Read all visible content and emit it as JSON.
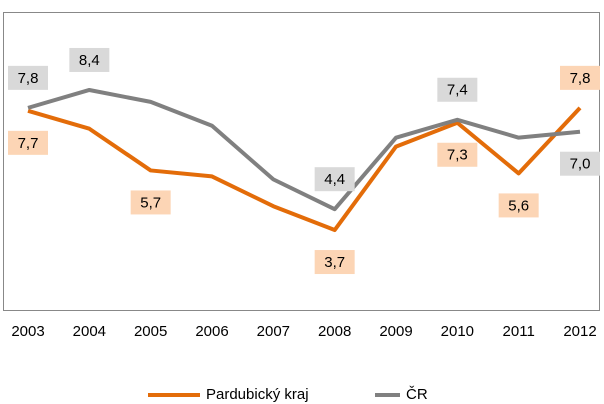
{
  "chart_data": {
    "type": "line",
    "categories": [
      "2003",
      "2004",
      "2005",
      "2006",
      "2007",
      "2008",
      "2009",
      "2010",
      "2011",
      "2012"
    ],
    "series": [
      {
        "name": "Pardubický kraj",
        "color": "#e36c09",
        "label_color": "#fcd5b5",
        "values": [
          7.7,
          7.1,
          5.7,
          5.5,
          4.5,
          3.7,
          6.5,
          7.3,
          5.6,
          7.8
        ],
        "value_labels": [
          "7,7",
          null,
          "5,7",
          null,
          null,
          "3,7",
          null,
          "7,3",
          "5,6",
          "7,8"
        ]
      },
      {
        "name": "ČR",
        "color": "#808080",
        "label_color": "#d9d9d9",
        "values": [
          7.8,
          8.4,
          8.0,
          7.2,
          5.4,
          4.4,
          6.8,
          7.4,
          6.8,
          7.0
        ],
        "value_labels": [
          "7,8",
          "8,4",
          null,
          null,
          null,
          "4,4",
          null,
          "7,4",
          null,
          "7,0"
        ]
      }
    ],
    "ylim": [
      1,
      11
    ],
    "legend": "bottom"
  }
}
